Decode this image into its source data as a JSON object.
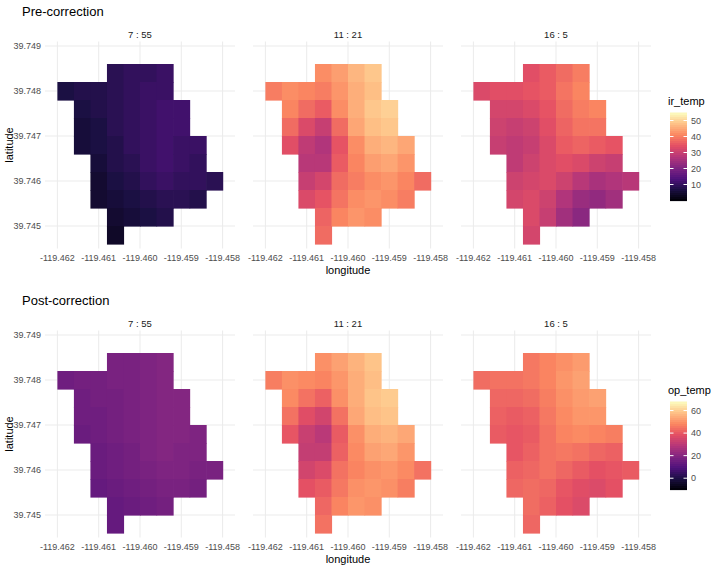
{
  "chart_data": [
    {
      "type": "heatmap",
      "title": "Pre-correction",
      "x_label": "longitude",
      "y_label": "latitude",
      "grid": true,
      "x": [
        -119.4618,
        -119.4614,
        -119.461,
        -119.4606,
        -119.4602,
        -119.4598,
        -119.4594,
        -119.459,
        -119.4586,
        -119.4582
      ],
      "y": [
        39.7488,
        39.7484,
        39.748,
        39.7476,
        39.7472,
        39.7468,
        39.7464,
        39.746,
        39.7456,
        39.7452,
        39.7448
      ],
      "xlim": [
        -119.4623,
        -119.4577
      ],
      "ylim": [
        39.7445,
        39.7491
      ],
      "xticks": [
        -119.462,
        -119.461,
        {
          "value": -119.46,
          "label": "-119.460"
        },
        -119.459,
        -119.458
      ],
      "yticks": [
        39.745,
        39.746,
        39.747,
        39.748,
        39.749
      ],
      "colorbar": {
        "title": "ir_temp",
        "range": [
          0,
          55
        ],
        "ticks": [
          10,
          20,
          30,
          40,
          50
        ]
      },
      "facets": [
        {
          "label": "7 : 55",
          "values": [
            [
              null,
              null,
              null,
              null,
              null,
              null,
              null,
              null,
              null,
              null
            ],
            [
              null,
              null,
              null,
              9,
              10,
              10,
              11,
              null,
              null,
              null
            ],
            [
              7,
              8,
              8,
              9,
              10,
              11,
              11,
              null,
              null,
              null
            ],
            [
              null,
              7,
              8,
              9,
              10,
              11,
              12,
              12,
              null,
              null
            ],
            [
              null,
              6,
              7,
              9,
              10,
              11,
              12,
              12,
              null,
              null
            ],
            [
              null,
              6,
              7,
              8,
              10,
              11,
              12,
              11,
              11,
              null
            ],
            [
              null,
              null,
              6,
              8,
              9,
              11,
              12,
              11,
              10,
              null
            ],
            [
              null,
              null,
              5,
              7,
              8,
              10,
              11,
              10,
              10,
              9
            ],
            [
              null,
              null,
              5,
              6,
              7,
              8,
              9,
              9,
              8,
              null
            ],
            [
              null,
              null,
              null,
              5,
              6,
              7,
              8,
              null,
              null,
              null
            ],
            [
              null,
              null,
              null,
              4,
              null,
              null,
              null,
              null,
              null,
              null
            ]
          ]
        },
        {
          "label": "11 : 21",
          "values": [
            [
              null,
              null,
              null,
              null,
              null,
              null,
              null,
              null,
              null,
              null
            ],
            [
              null,
              null,
              null,
              42,
              44,
              47,
              49,
              null,
              null,
              null
            ],
            [
              40,
              42,
              41,
              40,
              43,
              46,
              48,
              null,
              null,
              null
            ],
            [
              null,
              41,
              38,
              36,
              42,
              46,
              49,
              50,
              null,
              null
            ],
            [
              null,
              38,
              33,
              30,
              38,
              45,
              48,
              49,
              null,
              null
            ],
            [
              null,
              34,
              29,
              27,
              35,
              42,
              46,
              47,
              45,
              null
            ],
            [
              null,
              null,
              28,
              28,
              36,
              41,
              44,
              45,
              43,
              null
            ],
            [
              null,
              null,
              30,
              32,
              38,
              40,
              42,
              43,
              41,
              38
            ],
            [
              null,
              null,
              33,
              35,
              39,
              42,
              43,
              42,
              40,
              null
            ],
            [
              null,
              null,
              null,
              37,
              41,
              43,
              42,
              null,
              null,
              null
            ],
            [
              null,
              null,
              null,
              38,
              null,
              null,
              null,
              null,
              null,
              null
            ]
          ]
        },
        {
          "label": "16 : 5",
          "values": [
            [
              null,
              null,
              null,
              null,
              null,
              null,
              null,
              null,
              null,
              null
            ],
            [
              null,
              null,
              null,
              34,
              36,
              38,
              40,
              null,
              null,
              null
            ],
            [
              33,
              34,
              34,
              35,
              36,
              39,
              41,
              null,
              null,
              null
            ],
            [
              null,
              32,
              32,
              33,
              35,
              38,
              40,
              41,
              null,
              null
            ],
            [
              null,
              31,
              30,
              31,
              34,
              37,
              39,
              39,
              null,
              null
            ],
            [
              null,
              30,
              29,
              30,
              33,
              36,
              37,
              36,
              35,
              null
            ],
            [
              null,
              null,
              29,
              31,
              33,
              34,
              33,
              31,
              30,
              null
            ],
            [
              null,
              null,
              31,
              32,
              33,
              31,
              28,
              26,
              27,
              28
            ],
            [
              null,
              null,
              32,
              33,
              31,
              27,
              24,
              23,
              25,
              null
            ],
            [
              null,
              null,
              null,
              33,
              30,
              25,
              22,
              null,
              null,
              null
            ],
            [
              null,
              null,
              null,
              32,
              null,
              null,
              null,
              null,
              null,
              null
            ]
          ]
        }
      ]
    },
    {
      "type": "heatmap",
      "title": "Post-correction",
      "x_label": "longitude",
      "y_label": "latitude",
      "grid": true,
      "x": [
        -119.4618,
        -119.4614,
        -119.461,
        -119.4606,
        -119.4602,
        -119.4598,
        -119.4594,
        -119.459,
        -119.4586,
        -119.4582
      ],
      "y": [
        39.7488,
        39.7484,
        39.748,
        39.7476,
        39.7472,
        39.7468,
        39.7464,
        39.746,
        39.7456,
        39.7452,
        39.7448
      ],
      "xlim": [
        -119.4623,
        -119.4577
      ],
      "ylim": [
        39.7445,
        39.7491
      ],
      "xticks": [
        -119.462,
        -119.461,
        {
          "value": -119.46,
          "label": "-119.460"
        },
        -119.459,
        -119.458
      ],
      "yticks": [
        39.745,
        39.746,
        39.747,
        39.748,
        39.749
      ],
      "colorbar": {
        "title": "op_temp",
        "range": [
          -10,
          68
        ],
        "ticks": [
          0,
          20,
          40,
          60
        ]
      },
      "facets": [
        {
          "label": "7 : 55",
          "values": [
            [
              null,
              null,
              null,
              null,
              null,
              null,
              null,
              null,
              null,
              null
            ],
            [
              null,
              null,
              null,
              18,
              18,
              19,
              20,
              null,
              null,
              null
            ],
            [
              16,
              17,
              17,
              18,
              18,
              19,
              20,
              null,
              null,
              null
            ],
            [
              null,
              16,
              17,
              17,
              18,
              19,
              20,
              20,
              null,
              null
            ],
            [
              null,
              16,
              16,
              17,
              18,
              19,
              20,
              20,
              null,
              null
            ],
            [
              null,
              15,
              16,
              17,
              18,
              19,
              20,
              20,
              19,
              null
            ],
            [
              null,
              null,
              15,
              16,
              17,
              19,
              20,
              19,
              19,
              null
            ],
            [
              null,
              null,
              15,
              16,
              17,
              18,
              19,
              19,
              18,
              18
            ],
            [
              null,
              null,
              14,
              15,
              16,
              17,
              18,
              18,
              17,
              null
            ],
            [
              null,
              null,
              null,
              14,
              15,
              16,
              17,
              null,
              null,
              null
            ],
            [
              null,
              null,
              null,
              14,
              null,
              null,
              null,
              null,
              null,
              null
            ]
          ]
        },
        {
          "label": "11 : 21",
          "values": [
            [
              null,
              null,
              null,
              null,
              null,
              null,
              null,
              null,
              null,
              null
            ],
            [
              null,
              null,
              null,
              50,
              53,
              56,
              59,
              null,
              null,
              null
            ],
            [
              47,
              50,
              49,
              48,
              51,
              55,
              58,
              null,
              null,
              null
            ],
            [
              null,
              49,
              45,
              42,
              50,
              55,
              59,
              60,
              null,
              null
            ],
            [
              null,
              45,
              38,
              35,
              45,
              54,
              58,
              59,
              null,
              null
            ],
            [
              null,
              40,
              33,
              30,
              41,
              50,
              55,
              56,
              54,
              null
            ],
            [
              null,
              null,
              32,
              32,
              42,
              49,
              53,
              54,
              51,
              null
            ],
            [
              null,
              null,
              35,
              37,
              45,
              48,
              50,
              51,
              49,
              45
            ],
            [
              null,
              null,
              39,
              41,
              46,
              50,
              51,
              50,
              47,
              null
            ],
            [
              null,
              null,
              null,
              43,
              48,
              51,
              50,
              null,
              null,
              null
            ],
            [
              null,
              null,
              null,
              45,
              null,
              null,
              null,
              null,
              null,
              null
            ]
          ]
        },
        {
          "label": "16 : 5",
          "values": [
            [
              null,
              null,
              null,
              null,
              null,
              null,
              null,
              null,
              null,
              null
            ],
            [
              null,
              null,
              null,
              46,
              48,
              50,
              52,
              null,
              null,
              null
            ],
            [
              44,
              45,
              45,
              46,
              48,
              51,
              53,
              null,
              null,
              null
            ],
            [
              null,
              43,
              43,
              44,
              47,
              50,
              52,
              53,
              null,
              null
            ],
            [
              null,
              42,
              41,
              42,
              46,
              49,
              51,
              51,
              null,
              null
            ],
            [
              null,
              41,
              40,
              41,
              45,
              48,
              49,
              48,
              47,
              null
            ],
            [
              null,
              null,
              40,
              42,
              45,
              46,
              45,
              43,
              42,
              null
            ],
            [
              null,
              null,
              42,
              43,
              45,
              43,
              41,
              39,
              40,
              41
            ],
            [
              null,
              null,
              43,
              44,
              43,
              40,
              38,
              37,
              39,
              null
            ],
            [
              null,
              null,
              null,
              44,
              42,
              39,
              37,
              null,
              null,
              null
            ],
            [
              null,
              null,
              null,
              43,
              null,
              null,
              null,
              null,
              null,
              null
            ]
          ]
        }
      ]
    }
  ]
}
